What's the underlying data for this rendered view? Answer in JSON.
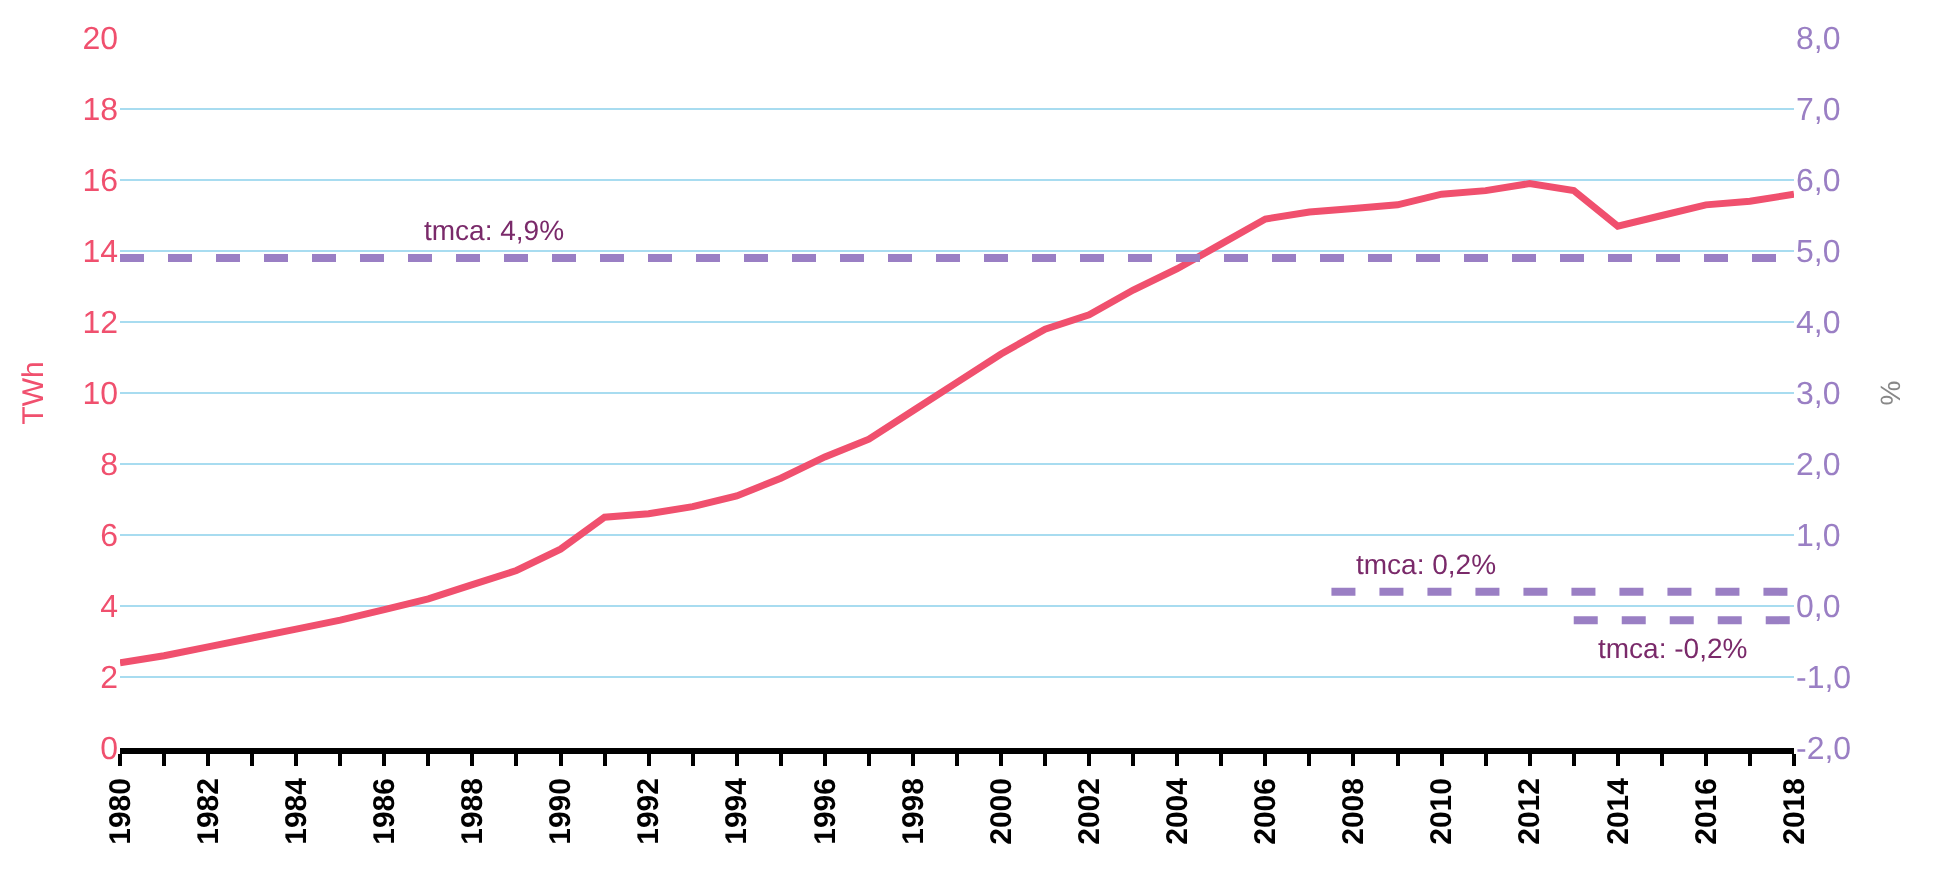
{
  "chart_data": {
    "type": "line",
    "ylabel": "TWh",
    "y2label": "%",
    "x": [
      1980,
      1981,
      1982,
      1983,
      1984,
      1985,
      1986,
      1987,
      1988,
      1989,
      1990,
      1991,
      1992,
      1993,
      1994,
      1995,
      1996,
      1997,
      1998,
      1999,
      2000,
      2001,
      2002,
      2003,
      2004,
      2005,
      2006,
      2007,
      2008,
      2009,
      2010,
      2011,
      2012,
      2013,
      2014,
      2015,
      2016,
      2017,
      2018
    ],
    "series": [
      {
        "color": "#f0506e",
        "line_style": "solid",
        "values": [
          2.4,
          2.6,
          2.85,
          3.1,
          3.35,
          3.6,
          3.9,
          4.2,
          4.6,
          5.0,
          5.6,
          6.5,
          6.6,
          6.8,
          7.1,
          7.6,
          8.2,
          8.7,
          9.5,
          10.3,
          11.1,
          11.8,
          12.2,
          12.9,
          13.5,
          14.2,
          14.9,
          15.1,
          15.2,
          15.3,
          15.6,
          15.7,
          15.9,
          15.7,
          14.7,
          15.0,
          15.3,
          15.4,
          15.6
        ]
      },
      {
        "name": "tmca: 4,9%",
        "color": "#9a7fc4",
        "line_style": "dashed",
        "axis": "y2",
        "x": [
          1980,
          2018
        ],
        "values": [
          4.9,
          4.9
        ]
      },
      {
        "name": "tmca: 0,2%",
        "color": "#9a7fc4",
        "line_style": "dashed",
        "axis": "y2",
        "x": [
          2007.5,
          2018
        ],
        "values": [
          0.2,
          0.2
        ]
      },
      {
        "name": "tmca: -0,2%",
        "color": "#9a7fc4",
        "line_style": "dashed",
        "axis": "y2",
        "x": [
          2013,
          2018
        ],
        "values": [
          -0.2,
          -0.2
        ]
      }
    ],
    "xlim": [
      1980,
      2018
    ],
    "xticks": [
      1980,
      {
        "value": 1981,
        "label": null
      },
      1982,
      {
        "value": 1983,
        "label": null
      },
      1984,
      {
        "value": 1985,
        "label": null
      },
      1986,
      {
        "value": 1987,
        "label": null
      },
      1988,
      {
        "value": 1989,
        "label": null
      },
      1990,
      {
        "value": 1991,
        "label": null
      },
      1992,
      {
        "value": 1993,
        "label": null
      },
      1994,
      {
        "value": 1995,
        "label": null
      },
      1996,
      {
        "value": 1997,
        "label": null
      },
      1998,
      {
        "value": 1999,
        "label": null
      },
      2000,
      {
        "value": 2001,
        "label": null
      },
      2002,
      {
        "value": 2003,
        "label": null
      },
      2004,
      {
        "value": 2005,
        "label": null
      },
      2006,
      {
        "value": 2007,
        "label": null
      },
      2008,
      {
        "value": 2009,
        "label": null
      },
      2010,
      {
        "value": 2011,
        "label": null
      },
      2012,
      {
        "value": 2013,
        "label": null
      },
      2014,
      {
        "value": 2015,
        "label": null
      },
      2016,
      {
        "value": 2017,
        "label": null
      },
      2018
    ],
    "ylim": [
      0,
      20
    ],
    "yticks": [
      0,
      2,
      4,
      6,
      8,
      10,
      12,
      14,
      16,
      18,
      20
    ],
    "y2lim": [
      -2,
      8
    ],
    "y2ticks": [
      {
        "value": -2,
        "label": "-2,0"
      },
      {
        "value": -1,
        "label": "-1,0"
      },
      {
        "value": 0,
        "label": "0,0"
      },
      {
        "value": 1,
        "label": "1,0"
      },
      {
        "value": 2,
        "label": "2,0"
      },
      {
        "value": 3,
        "label": "3,0"
      },
      {
        "value": 4,
        "label": "4,0"
      },
      {
        "value": 5,
        "label": "5,0"
      },
      {
        "value": 6,
        "label": "6,0"
      },
      {
        "value": 7,
        "label": "7,0"
      },
      {
        "value": 8,
        "label": "8,0"
      }
    ],
    "grid": "y",
    "marker": "none",
    "legend": false
  }
}
